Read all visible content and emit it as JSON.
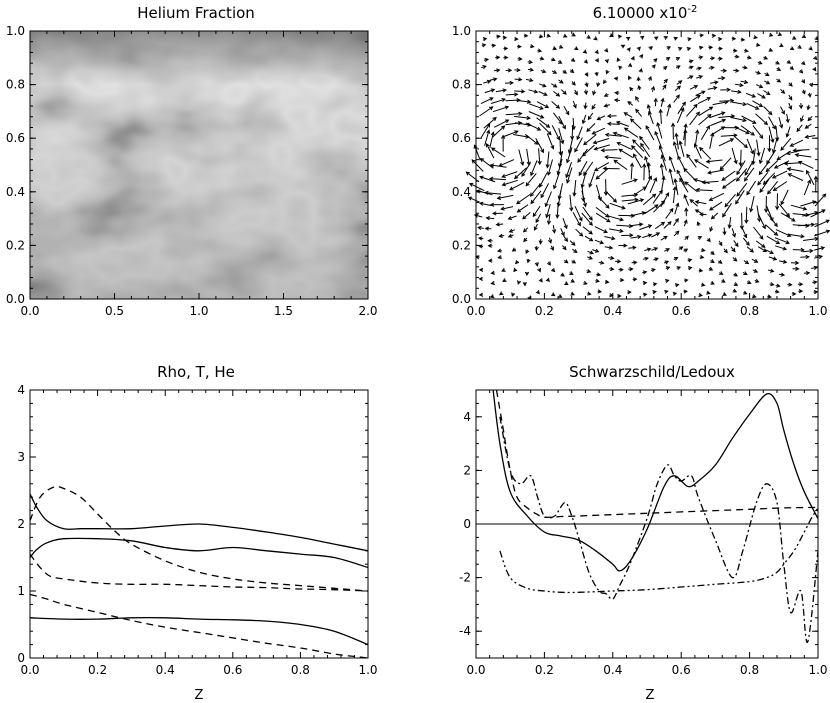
{
  "chart_data": [
    {
      "type": "heatmap",
      "title": "Helium Fraction",
      "xlabel": "",
      "ylabel": "",
      "xlim": [
        0.0,
        2.0
      ],
      "ylim": [
        0.0,
        1.0
      ],
      "x_tick_labels": [
        "0.0",
        "0.5",
        "1.0",
        "1.5",
        "2.0"
      ],
      "y_tick_labels": [
        "0.0",
        "0.2",
        "0.4",
        "0.6",
        "0.8",
        "1.0"
      ],
      "colormap": "grayscale"
    },
    {
      "type": "vector_field",
      "title_mantissa": "6.10000 x10",
      "title_exponent": "-2",
      "xlabel": "",
      "ylabel": "",
      "xlim": [
        0.0,
        1.0
      ],
      "ylim": [
        0.0,
        1.0
      ],
      "x_tick_labels": [
        "0.0",
        "0.2",
        "0.4",
        "0.6",
        "0.8",
        "1.0"
      ],
      "y_tick_labels": [
        "0.0",
        "0.2",
        "0.4",
        "0.6",
        "0.8",
        "1.0"
      ],
      "vortices": [
        {
          "x": 0.1,
          "y": 0.55,
          "rotation": "clockwise"
        },
        {
          "x": 0.42,
          "y": 0.45,
          "rotation": "counterclockwise"
        },
        {
          "x": 0.72,
          "y": 0.55,
          "rotation": "clockwise"
        },
        {
          "x": 0.93,
          "y": 0.4,
          "rotation": "counterclockwise"
        }
      ]
    },
    {
      "type": "line",
      "title": "Rho, T, He",
      "xlabel": "Z",
      "ylabel": "",
      "xlim": [
        0.0,
        1.0
      ],
      "ylim": [
        0,
        4
      ],
      "x_tick_labels": [
        "0.0",
        "0.2",
        "0.4",
        "0.6",
        "0.8",
        "1.0"
      ],
      "y_tick_labels": [
        "0",
        "1",
        "2",
        "3",
        "4"
      ],
      "series": [
        {
          "style": "solid",
          "x": [
            0,
            0.02,
            0.05,
            0.1,
            0.15,
            0.2,
            0.3,
            0.4,
            0.5,
            0.6,
            0.7,
            0.8,
            0.9,
            1.0
          ],
          "values": [
            2.45,
            2.25,
            2.05,
            1.93,
            1.93,
            1.93,
            1.93,
            1.97,
            2.0,
            1.95,
            1.88,
            1.8,
            1.7,
            1.6
          ]
        },
        {
          "style": "solid",
          "x": [
            0,
            0.02,
            0.05,
            0.1,
            0.2,
            0.3,
            0.4,
            0.5,
            0.6,
            0.7,
            0.8,
            0.9,
            1.0
          ],
          "values": [
            1.5,
            1.62,
            1.72,
            1.78,
            1.78,
            1.75,
            1.65,
            1.6,
            1.65,
            1.6,
            1.55,
            1.5,
            1.35
          ]
        },
        {
          "style": "solid",
          "x": [
            0,
            0.1,
            0.2,
            0.3,
            0.4,
            0.5,
            0.6,
            0.7,
            0.8,
            0.9,
            1.0
          ],
          "values": [
            0.6,
            0.58,
            0.58,
            0.6,
            0.6,
            0.58,
            0.57,
            0.55,
            0.5,
            0.4,
            0.2
          ]
        },
        {
          "style": "dashed",
          "x": [
            0,
            0.03,
            0.07,
            0.1,
            0.15,
            0.2,
            0.25,
            0.3,
            0.4,
            0.5,
            0.6,
            0.7,
            0.8,
            0.9,
            1.0
          ],
          "values": [
            2.05,
            2.4,
            2.55,
            2.53,
            2.4,
            2.15,
            1.9,
            1.7,
            1.45,
            1.28,
            1.18,
            1.12,
            1.08,
            1.04,
            1.0
          ]
        },
        {
          "style": "dashed",
          "x": [
            0,
            0.03,
            0.06,
            0.1,
            0.2,
            0.3,
            0.4,
            0.5,
            0.6,
            0.7,
            0.8,
            0.9,
            1.0
          ],
          "values": [
            1.55,
            1.35,
            1.22,
            1.18,
            1.12,
            1.1,
            1.1,
            1.08,
            1.06,
            1.05,
            1.03,
            1.02,
            1.0
          ]
        },
        {
          "style": "dashed",
          "x": [
            0,
            0.05,
            0.1,
            0.2,
            0.3,
            0.4,
            0.5,
            0.6,
            0.7,
            0.8,
            0.9,
            1.0
          ],
          "values": [
            0.95,
            0.88,
            0.8,
            0.68,
            0.56,
            0.46,
            0.38,
            0.3,
            0.22,
            0.15,
            0.06,
            0.0
          ]
        }
      ]
    },
    {
      "type": "line",
      "title": "Schwarzschild/Ledoux",
      "xlabel": "Z",
      "ylabel": "",
      "xlim": [
        0.0,
        1.0
      ],
      "ylim": [
        -5,
        5
      ],
      "x_tick_labels": [
        "0.0",
        "0.2",
        "0.4",
        "0.6",
        "0.8",
        "1.0"
      ],
      "y_tick_labels": [
        "-4",
        "-2",
        "0",
        "2",
        "4"
      ],
      "reference_line_y": 0,
      "series": [
        {
          "style": "solid",
          "x": [
            0.05,
            0.07,
            0.1,
            0.15,
            0.2,
            0.25,
            0.3,
            0.35,
            0.4,
            0.42,
            0.45,
            0.5,
            0.55,
            0.58,
            0.62,
            0.65,
            0.7,
            0.75,
            0.8,
            0.85,
            0.88,
            0.9,
            0.93,
            0.96,
            1.0
          ],
          "values": [
            5.0,
            3.0,
            1.2,
            0.3,
            -0.3,
            -0.45,
            -0.6,
            -1.0,
            -1.5,
            -1.75,
            -1.4,
            -0.2,
            1.4,
            1.8,
            1.4,
            1.6,
            2.2,
            3.2,
            4.1,
            4.85,
            4.5,
            3.5,
            2.2,
            1.2,
            0.2
          ]
        },
        {
          "style": "dashed",
          "x": [
            0.06,
            0.08,
            0.1,
            0.12,
            0.15,
            0.18,
            0.2,
            0.25,
            0.3,
            0.4,
            0.5,
            0.6,
            0.7,
            0.8,
            0.9,
            1.0
          ],
          "values": [
            5.0,
            3.5,
            2.0,
            1.0,
            0.6,
            0.35,
            0.25,
            0.28,
            0.3,
            0.35,
            0.4,
            0.45,
            0.5,
            0.55,
            0.6,
            0.62
          ]
        },
        {
          "style": "dashdot",
          "x": [
            0.07,
            0.1,
            0.13,
            0.16,
            0.18,
            0.2,
            0.23,
            0.26,
            0.28,
            0.3,
            0.33,
            0.36,
            0.38,
            0.4,
            0.42,
            0.45,
            0.5,
            0.53,
            0.56,
            0.58,
            0.6,
            0.63,
            0.65,
            0.7,
            0.75,
            0.78,
            0.82,
            0.85,
            0.88,
            0.9,
            0.92,
            0.95,
            0.97,
            1.0
          ],
          "values": [
            4.0,
            2.0,
            1.5,
            1.8,
            1.0,
            0.3,
            0.3,
            0.8,
            0.3,
            -0.5,
            -1.8,
            -2.5,
            -2.6,
            -2.8,
            -2.3,
            -1.5,
            0.2,
            1.5,
            2.2,
            1.8,
            1.6,
            1.8,
            1.0,
            -0.6,
            -2.0,
            -1.0,
            0.8,
            1.5,
            0.8,
            -1.5,
            -3.3,
            -2.5,
            -4.4,
            -1.0
          ]
        },
        {
          "style": "dashdotdot",
          "x": [
            0.07,
            0.1,
            0.15,
            0.2,
            0.25,
            0.3,
            0.4,
            0.5,
            0.6,
            0.7,
            0.8,
            0.85,
            0.88,
            0.9,
            0.93,
            0.96,
            0.98,
            1.0
          ],
          "values": [
            -1.0,
            -2.0,
            -2.4,
            -2.5,
            -2.55,
            -2.55,
            -2.5,
            -2.45,
            -2.35,
            -2.25,
            -2.15,
            -2.0,
            -1.8,
            -1.5,
            -1.0,
            -0.3,
            0.2,
            0.6
          ]
        }
      ]
    }
  ]
}
